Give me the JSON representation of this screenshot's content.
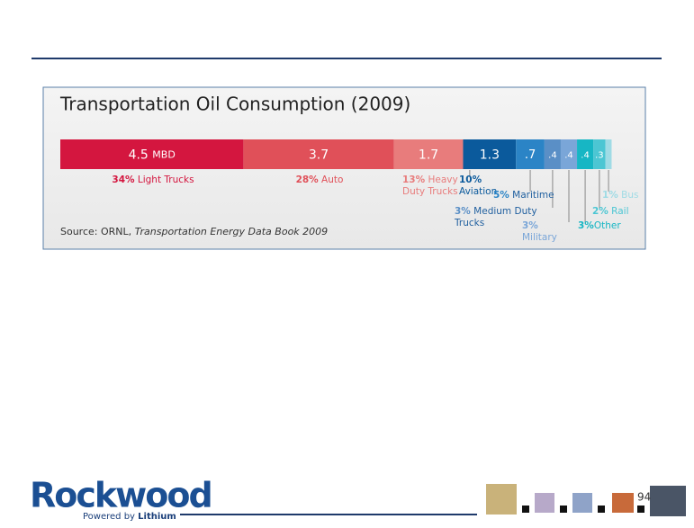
{
  "chart_data": {
    "type": "stacked_bar",
    "title": "Transportation Oil Consumption (2009)",
    "unit": "MBD",
    "source_prefix": "Source: ORNL,",
    "source_title": "Transportation Energy Data Book 2009",
    "series": [
      {
        "name": "Light Trucks",
        "share": "34%",
        "color": "#d4163f",
        "values": [
          4.5
        ]
      },
      {
        "name": "Auto",
        "share": "28%",
        "color": "#e05059",
        "values": [
          3.7
        ]
      },
      {
        "name": "Heavy Duty Trucks",
        "share": "13%",
        "color": "#e87c7c",
        "values": [
          1.7
        ]
      },
      {
        "name": "Aviation",
        "share": "10%",
        "color": "#0b5a9c",
        "values": [
          1.3
        ]
      },
      {
        "name": "Maritime",
        "share": "5%",
        "color": "#2b84c6",
        "values": [
          0.7
        ],
        "value_labels": [
          ".7"
        ]
      },
      {
        "name": "Medium Duty Trucks",
        "share": "3%",
        "color": "#5a8fc6",
        "values": [
          0.4
        ],
        "value_labels": [
          ".4"
        ]
      },
      {
        "name": "Military",
        "share": "3%",
        "color": "#7aa6d8",
        "values": [
          0.4
        ],
        "value_labels": [
          ".4"
        ]
      },
      {
        "name": "Other",
        "share": "3%",
        "color": "#17b6c4",
        "values": [
          0.4
        ],
        "value_labels": [
          ".4"
        ]
      },
      {
        "name": "Rail",
        "share": "2%",
        "color": "#4cc6d3",
        "values": [
          0.3
        ],
        "value_labels": [
          ".3"
        ]
      },
      {
        "name": "Bus",
        "share": "1%",
        "color": "#9fdbe5",
        "values": [
          0.15
        ]
      }
    ]
  },
  "slide": {
    "logo": "Rockwood",
    "tagline_prefix": "Powered by",
    "tagline_brand": "Lithium",
    "page_number": "94"
  }
}
